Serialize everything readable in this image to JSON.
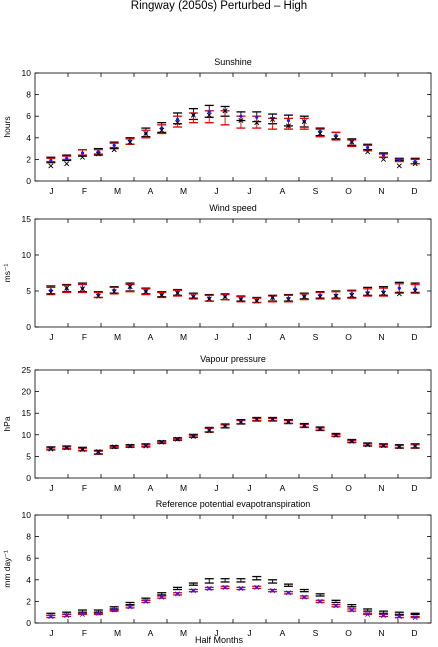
{
  "figure": {
    "title": "Ringway (2050s) Perturbed – High",
    "xlabel": "Half Months"
  },
  "colors": {
    "black": "#000000",
    "red": "#e00000",
    "blue": "#1a1aff",
    "magenta": "#cc00cc",
    "axis": "#000000",
    "background": "#ffffff"
  },
  "chart_data": [
    {
      "type": "scatter",
      "title": "Sunshine",
      "ylabel": "hours",
      "ylim": [
        0,
        10
      ],
      "yticks": [
        0,
        2,
        4,
        6,
        8,
        10
      ],
      "xtick_labels": [
        "J",
        "F",
        "M",
        "A",
        "M",
        "J",
        "J",
        "A",
        "S",
        "O",
        "N",
        "D"
      ],
      "x": [
        1,
        2,
        3,
        4,
        5,
        6,
        7,
        8,
        9,
        10,
        11,
        12,
        13,
        14,
        15,
        16,
        17,
        18,
        19,
        20,
        21,
        22,
        23,
        24
      ],
      "series": [
        {
          "color": "black",
          "kind": "errorbar",
          "lo": [
            1.7,
            1.9,
            2.3,
            2.4,
            3.0,
            3.4,
            4.1,
            4.5,
            5.3,
            5.7,
            5.9,
            6.0,
            5.6,
            5.5,
            5.3,
            5.1,
            5.0,
            4.2,
            3.9,
            3.3,
            2.9,
            2.2,
            1.9,
            1.6
          ],
          "hi": [
            2.2,
            2.4,
            2.9,
            3.0,
            3.6,
            4.0,
            4.9,
            5.4,
            6.3,
            6.7,
            7.0,
            6.9,
            6.4,
            6.4,
            6.2,
            6.1,
            6.0,
            4.9,
            4.5,
            3.9,
            3.4,
            2.6,
            2.1,
            2.1
          ]
        },
        {
          "color": "red",
          "kind": "errorbar",
          "lo": [
            1.8,
            2.0,
            2.4,
            2.5,
            3.1,
            3.4,
            4.0,
            4.4,
            5.0,
            5.4,
            5.4,
            5.2,
            4.9,
            4.9,
            4.8,
            4.8,
            4.8,
            4.1,
            3.8,
            3.2,
            2.8,
            2.2,
            1.8,
            1.6
          ],
          "hi": [
            2.1,
            2.3,
            2.9,
            2.9,
            3.5,
            3.9,
            4.7,
            5.2,
            6.0,
            6.3,
            6.5,
            6.5,
            6.0,
            6.0,
            5.8,
            5.8,
            5.8,
            4.8,
            4.5,
            3.8,
            3.3,
            2.5,
            2.0,
            2.0
          ]
        },
        {
          "color": "blue",
          "kind": "point",
          "values": [
            1.9,
            2.1,
            2.6,
            2.7,
            3.3,
            3.7,
            4.4,
            4.9,
            5.7,
            6.1,
            6.4,
            6.5,
            6.0,
            5.9,
            5.8,
            5.6,
            5.5,
            4.6,
            4.2,
            3.6,
            3.1,
            2.4,
            2.0,
            1.8
          ]
        },
        {
          "color": "black",
          "kind": "cross",
          "values": [
            1.4,
            1.6,
            2.2,
            2.5,
            2.9,
            3.6,
            4.4,
            4.7,
            5.4,
            6.1,
            6.1,
            6.5,
            5.6,
            5.4,
            5.7,
            5.1,
            5.5,
            4.4,
            4.0,
            3.6,
            2.7,
            2.0,
            1.4,
            1.6
          ]
        }
      ]
    },
    {
      "type": "scatter",
      "title": "Wind speed",
      "ylabel": "ms⁻¹",
      "ylim": [
        0,
        15
      ],
      "yticks": [
        0,
        5,
        10,
        15
      ],
      "xtick_labels": [
        "J",
        "F",
        "M",
        "A",
        "M",
        "J",
        "J",
        "A",
        "S",
        "O",
        "N",
        "D"
      ],
      "x": [
        1,
        2,
        3,
        4,
        5,
        6,
        7,
        8,
        9,
        10,
        11,
        12,
        13,
        14,
        15,
        16,
        17,
        18,
        19,
        20,
        21,
        22,
        23,
        24
      ],
      "series": [
        {
          "color": "black",
          "kind": "errorbar",
          "lo": [
            4.6,
            4.9,
            4.9,
            4.1,
            4.7,
            5.0,
            4.6,
            4.2,
            4.4,
            4.0,
            3.6,
            3.8,
            3.6,
            3.4,
            3.6,
            3.6,
            3.9,
            4.0,
            4.0,
            4.1,
            4.4,
            4.4,
            4.8,
            4.8
          ],
          "hi": [
            5.7,
            5.9,
            6.1,
            4.9,
            5.6,
            6.1,
            5.4,
            4.9,
            5.2,
            4.7,
            4.5,
            4.6,
            4.3,
            4.1,
            4.4,
            4.5,
            4.7,
            4.9,
            5.0,
            5.1,
            5.5,
            5.6,
            6.2,
            6.1
          ]
        },
        {
          "color": "red",
          "kind": "errorbar",
          "lo": [
            4.5,
            4.8,
            4.8,
            4.1,
            4.6,
            4.9,
            4.5,
            4.1,
            4.3,
            3.9,
            3.6,
            3.8,
            3.5,
            3.4,
            3.5,
            3.5,
            3.8,
            3.9,
            3.9,
            4.0,
            4.3,
            4.3,
            4.7,
            4.7
          ],
          "hi": [
            5.5,
            5.8,
            5.9,
            4.8,
            5.5,
            5.9,
            5.3,
            4.8,
            5.1,
            4.6,
            4.4,
            4.5,
            4.2,
            4.0,
            4.3,
            4.4,
            4.6,
            4.8,
            4.9,
            5.0,
            5.3,
            5.4,
            6.0,
            5.9
          ]
        },
        {
          "color": "blue",
          "kind": "point",
          "values": [
            5.1,
            5.3,
            5.4,
            4.5,
            5.1,
            5.5,
            5.0,
            4.5,
            4.8,
            4.3,
            4.0,
            4.2,
            3.9,
            3.7,
            4.0,
            4.0,
            4.3,
            4.4,
            4.4,
            4.6,
            4.8,
            4.9,
            5.4,
            5.3
          ]
        },
        {
          "color": "black",
          "kind": "cross",
          "values": [
            4.8,
            5.4,
            5.3,
            4.3,
            4.9,
            5.6,
            4.9,
            4.4,
            4.7,
            4.2,
            3.9,
            4.2,
            3.8,
            3.6,
            4.1,
            3.8,
            4.2,
            4.2,
            4.3,
            4.4,
            4.6,
            4.7,
            4.6,
            5.0
          ]
        }
      ]
    },
    {
      "type": "scatter",
      "title": "Vapour pressure",
      "ylabel": "hPa",
      "ylim": [
        0,
        25
      ],
      "yticks": [
        0,
        5,
        10,
        15,
        20,
        25
      ],
      "xtick_labels": [
        "J",
        "F",
        "M",
        "A",
        "M",
        "J",
        "J",
        "A",
        "S",
        "O",
        "N",
        "D"
      ],
      "x": [
        1,
        2,
        3,
        4,
        5,
        6,
        7,
        8,
        9,
        10,
        11,
        12,
        13,
        14,
        15,
        16,
        17,
        18,
        19,
        20,
        21,
        22,
        23,
        24
      ],
      "series": [
        {
          "color": "black",
          "kind": "errorbar",
          "lo": [
            6.5,
            6.7,
            6.3,
            5.5,
            6.9,
            7.1,
            7.2,
            8.0,
            8.7,
            9.4,
            10.6,
            11.6,
            12.5,
            13.2,
            13.2,
            12.6,
            11.7,
            11.0,
            9.6,
            8.2,
            7.4,
            7.2,
            6.9,
            6.9
          ],
          "hi": [
            7.2,
            7.4,
            7.1,
            6.4,
            7.5,
            7.7,
            7.9,
            8.6,
            9.3,
            10.1,
            11.7,
            12.5,
            13.5,
            14.0,
            14.0,
            13.5,
            12.6,
            11.8,
            10.3,
            8.9,
            8.1,
            7.9,
            7.7,
            7.9
          ]
        },
        {
          "color": "red",
          "kind": "errorbar",
          "lo": [
            6.6,
            6.8,
            6.4,
            5.6,
            7.0,
            7.2,
            7.3,
            8.1,
            8.8,
            9.5,
            10.7,
            11.7,
            12.6,
            13.3,
            13.3,
            12.7,
            11.8,
            11.1,
            9.7,
            8.3,
            7.5,
            7.3,
            7.0,
            7.0
          ],
          "hi": [
            7.0,
            7.2,
            6.9,
            6.2,
            7.3,
            7.5,
            7.7,
            8.4,
            9.1,
            9.9,
            11.5,
            12.3,
            13.3,
            13.8,
            13.8,
            13.3,
            12.4,
            11.6,
            10.1,
            8.7,
            7.9,
            7.7,
            7.5,
            7.7
          ]
        },
        {
          "color": "blue",
          "kind": "point",
          "values": [
            6.8,
            7.0,
            6.7,
            5.9,
            7.2,
            7.4,
            7.5,
            8.3,
            9.0,
            9.7,
            11.1,
            12.0,
            13.0,
            13.6,
            13.6,
            13.0,
            12.1,
            11.4,
            9.9,
            8.5,
            7.7,
            7.5,
            7.3,
            7.4
          ]
        },
        {
          "color": "black",
          "kind": "cross",
          "values": [
            6.7,
            7.0,
            6.6,
            6.1,
            7.2,
            7.4,
            7.4,
            8.3,
            9.0,
            9.6,
            11.0,
            12.0,
            12.9,
            13.6,
            13.6,
            13.0,
            12.2,
            11.4,
            9.9,
            8.5,
            7.7,
            7.5,
            7.3,
            7.4
          ]
        }
      ]
    },
    {
      "type": "scatter",
      "title": "Reference potential evapotranspiration",
      "ylabel": "mm day⁻¹",
      "ylim": [
        0,
        10
      ],
      "yticks": [
        0,
        2,
        4,
        6,
        8,
        10
      ],
      "xtick_labels": [
        "J",
        "F",
        "M",
        "A",
        "M",
        "J",
        "J",
        "A",
        "S",
        "O",
        "N",
        "D"
      ],
      "x": [
        1,
        2,
        3,
        4,
        5,
        6,
        7,
        8,
        9,
        10,
        11,
        12,
        13,
        14,
        15,
        16,
        17,
        18,
        19,
        20,
        21,
        22,
        23,
        24
      ],
      "series": [
        {
          "color": "black",
          "kind": "errorbar",
          "lo": [
            0.7,
            0.8,
            1.0,
            1.0,
            1.3,
            1.7,
            2.1,
            2.6,
            3.1,
            3.5,
            3.7,
            3.8,
            3.8,
            4.0,
            3.7,
            3.4,
            2.9,
            2.5,
            1.9,
            1.5,
            1.1,
            0.9,
            0.8,
            0.8
          ],
          "hi": [
            0.9,
            1.0,
            1.2,
            1.2,
            1.5,
            1.9,
            2.3,
            2.8,
            3.3,
            3.7,
            4.1,
            4.1,
            4.1,
            4.3,
            4.0,
            3.6,
            3.1,
            2.7,
            2.1,
            1.7,
            1.3,
            1.1,
            1.0,
            0.9
          ]
        },
        {
          "color": "red",
          "kind": "errorbar",
          "lo": [
            0.5,
            0.6,
            0.8,
            0.8,
            1.1,
            1.4,
            1.9,
            2.3,
            2.6,
            2.9,
            3.1,
            3.2,
            3.1,
            3.2,
            2.9,
            2.7,
            2.3,
            1.9,
            1.5,
            1.1,
            0.8,
            0.6,
            0.5,
            0.5
          ],
          "hi": [
            0.7,
            0.8,
            0.9,
            0.9,
            1.2,
            1.6,
            2.1,
            2.5,
            2.8,
            3.1,
            3.3,
            3.4,
            3.3,
            3.4,
            3.1,
            2.9,
            2.5,
            2.1,
            1.7,
            1.3,
            0.9,
            0.8,
            0.7,
            0.6
          ]
        },
        {
          "color": "magenta",
          "kind": "point",
          "values": [
            0.6,
            0.7,
            0.85,
            0.85,
            1.15,
            1.5,
            2.0,
            2.4,
            2.7,
            3.0,
            3.2,
            3.3,
            3.2,
            3.3,
            3.0,
            2.8,
            2.4,
            2.0,
            1.6,
            1.2,
            0.85,
            0.7,
            0.6,
            0.55
          ]
        },
        {
          "color": "blue",
          "kind": "cross",
          "values": [
            0.6,
            0.7,
            0.8,
            0.9,
            1.2,
            1.5,
            2.0,
            2.4,
            2.7,
            3.0,
            3.2,
            3.3,
            3.2,
            3.3,
            3.0,
            2.8,
            2.4,
            2.0,
            1.6,
            1.2,
            0.8,
            0.7,
            0.6,
            0.5
          ]
        }
      ]
    }
  ]
}
